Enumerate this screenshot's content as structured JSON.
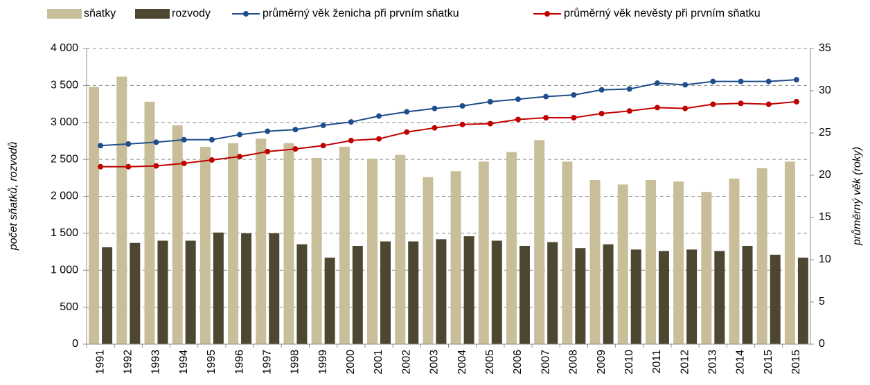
{
  "chart_data": {
    "type": "bar",
    "categories": [
      "1991",
      "1992",
      "1993",
      "1994",
      "1995",
      "1996",
      "1997",
      "1998",
      "1999",
      "2000",
      "2001",
      "2002",
      "2003",
      "2004",
      "2005",
      "2006",
      "2007",
      "2008",
      "2009",
      "2010",
      "2011",
      "2012",
      "2013",
      "2014",
      "2015",
      "2015"
    ],
    "series": [
      {
        "name": "sňatky",
        "type": "bar",
        "color": "#c8bf9a",
        "values": [
          3480,
          3620,
          3280,
          2960,
          2670,
          2720,
          2780,
          2720,
          2520,
          2670,
          2510,
          2560,
          2260,
          2340,
          2470,
          2600,
          2760,
          2470,
          2220,
          2160,
          2220,
          2200,
          2060,
          2240,
          2380,
          2470
        ]
      },
      {
        "name": "rozvody",
        "type": "bar",
        "color": "#4d4630",
        "values": [
          1310,
          1370,
          1400,
          1400,
          1510,
          1500,
          1500,
          1350,
          1170,
          1330,
          1390,
          1390,
          1420,
          1460,
          1400,
          1330,
          1380,
          1300,
          1350,
          1280,
          1260,
          1280,
          1260,
          1330,
          1210,
          1170
        ]
      },
      {
        "name": "průměrný věk ženicha při prvním sňatku",
        "type": "line",
        "axis": "y2",
        "color": "#1f4e8c",
        "values": [
          23.5,
          23.7,
          23.9,
          24.2,
          24.2,
          24.8,
          25.2,
          25.4,
          25.9,
          26.3,
          27.0,
          27.5,
          27.9,
          28.2,
          28.7,
          29.0,
          29.3,
          29.5,
          30.1,
          30.2,
          30.9,
          30.7,
          31.1,
          31.1,
          31.1,
          31.3
        ]
      },
      {
        "name": "průměrný věk nevěsty při prvním sňatku",
        "type": "line",
        "axis": "y2",
        "color": "#c00000",
        "values": [
          21.0,
          21.0,
          21.1,
          21.4,
          21.8,
          22.2,
          22.8,
          23.1,
          23.5,
          24.1,
          24.3,
          25.1,
          25.6,
          26.0,
          26.1,
          26.6,
          26.8,
          26.8,
          27.3,
          27.6,
          28.0,
          27.9,
          28.4,
          28.5,
          28.4,
          28.7
        ]
      }
    ],
    "ylabel": "počet sňatků, rozvodů",
    "y2label": "průměrný věk (roky)",
    "ylim": [
      0,
      4000
    ],
    "yticks": [
      0,
      500,
      {
        "value": 1000,
        "label": "1 000"
      },
      {
        "value": 1500,
        "label": "1 500"
      },
      {
        "value": 2000,
        "label": "2 000"
      },
      {
        "value": 2500,
        "label": "2 500"
      },
      {
        "value": 3000,
        "label": "3 000"
      },
      {
        "value": 3500,
        "label": "3 500"
      },
      {
        "value": 4000,
        "label": "4 000"
      }
    ],
    "y2lim": [
      0,
      35
    ],
    "y2ticks": [
      0,
      5,
      10,
      15,
      20,
      25,
      30,
      35
    ],
    "grid": true,
    "legend": "top"
  }
}
